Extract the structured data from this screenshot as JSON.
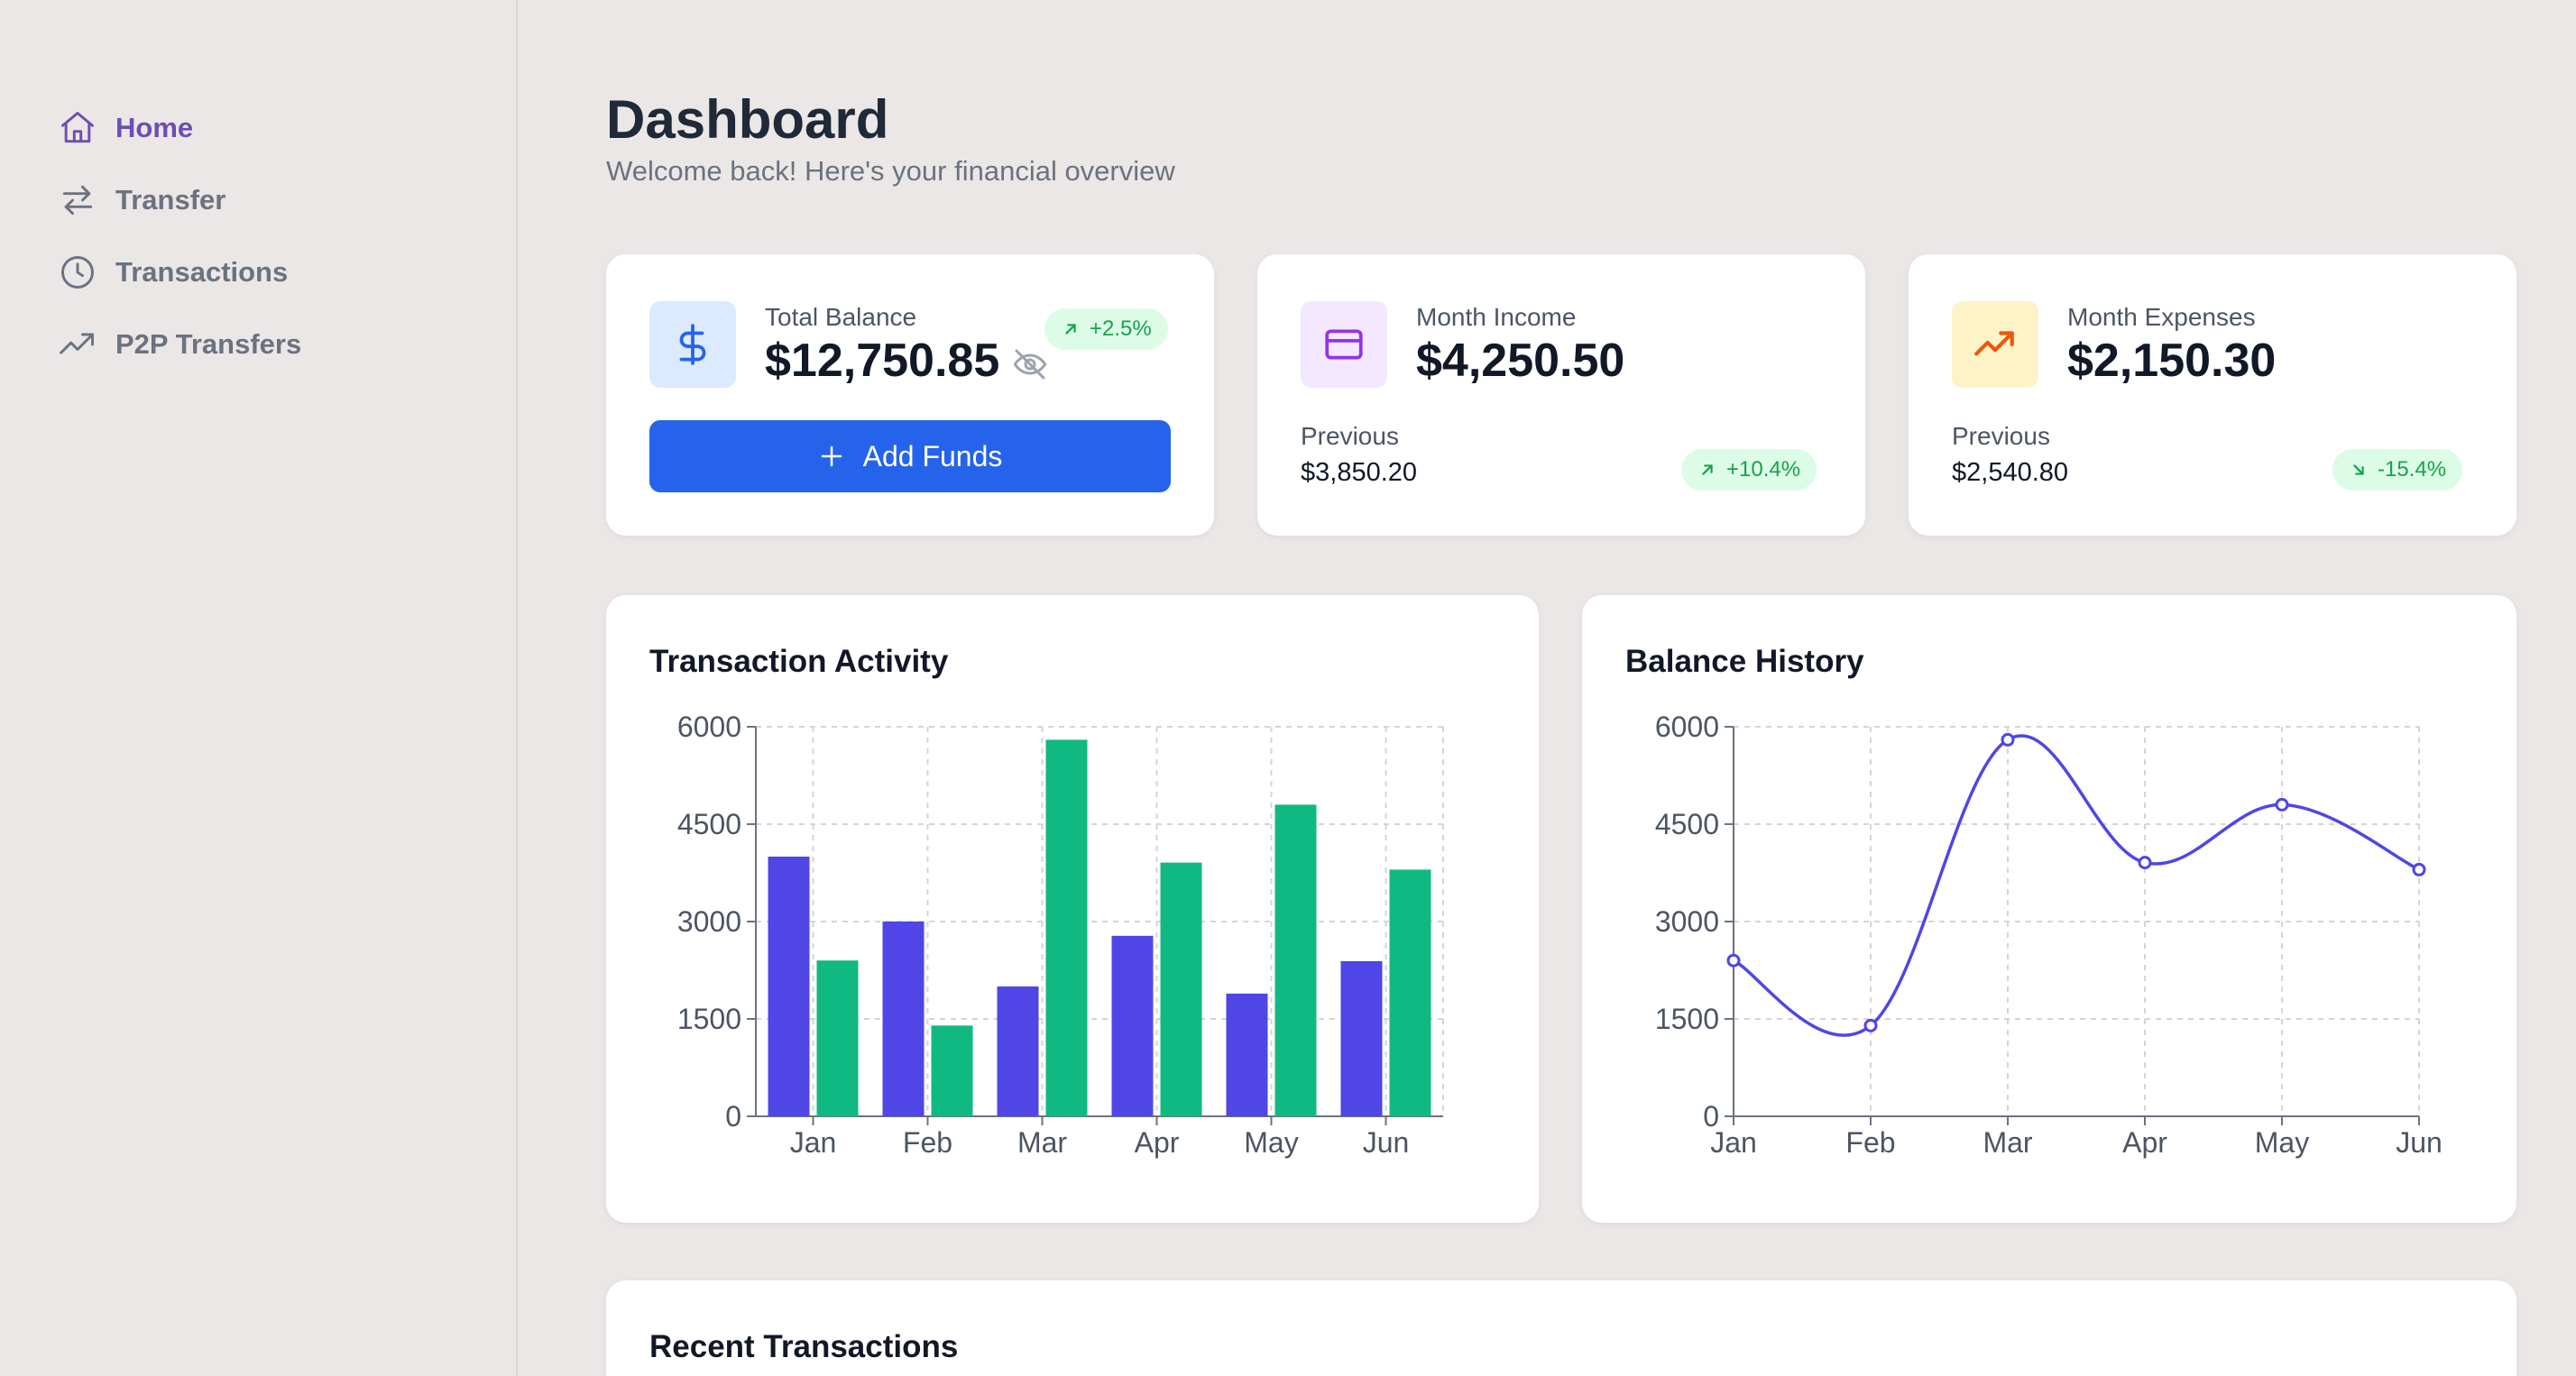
{
  "sidebar": {
    "items": [
      {
        "label": "Home",
        "icon": "home-icon",
        "active": true
      },
      {
        "label": "Transfer",
        "icon": "transfer-arrows-icon",
        "active": false
      },
      {
        "label": "Transactions",
        "icon": "clock-icon",
        "active": false
      },
      {
        "label": "P2P Transfers",
        "icon": "trending-up-icon",
        "active": false
      }
    ]
  },
  "header": {
    "title": "Dashboard",
    "subtitle": "Welcome back! Here's your financial overview"
  },
  "stats": {
    "balance": {
      "label": "Total Balance",
      "value": "$12,750.85",
      "change": "+2.5%",
      "button_label": "Add Funds",
      "icon": "dollar-icon"
    },
    "income": {
      "label": "Month Income",
      "value": "$4,250.50",
      "previous_label": "Previous",
      "previous_value": "$3,850.20",
      "change": "+10.4%",
      "icon": "credit-card-icon"
    },
    "expenses": {
      "label": "Month Expenses",
      "value": "$2,150.30",
      "previous_label": "Previous",
      "previous_value": "$2,540.80",
      "change": "-15.4%",
      "icon": "trending-up-icon"
    }
  },
  "colors": {
    "accent": "#2563eb",
    "active_nav": "#6b4fb3",
    "series_purple": "#4f46e5",
    "series_green": "#10b981",
    "badge_bg": "#dcfce7",
    "badge_text": "#16a34a"
  },
  "chart_data": [
    {
      "type": "bar",
      "title": "Transaction Activity",
      "categories": [
        "Jan",
        "Feb",
        "Mar",
        "Apr",
        "May",
        "Jun"
      ],
      "series": [
        {
          "values": [
            4000,
            3000,
            2000,
            2780,
            1890,
            2390
          ],
          "color": "#4f46e5"
        },
        {
          "values": [
            2400,
            1398,
            5800,
            3908,
            4800,
            3800
          ],
          "color": "#10b981"
        }
      ],
      "ylim": [
        0,
        6000
      ],
      "yticks": [
        0,
        1500,
        3000,
        4500,
        6000
      ],
      "grid": true
    },
    {
      "type": "line",
      "title": "Balance History",
      "categories": [
        "Jan",
        "Feb",
        "Mar",
        "Apr",
        "May",
        "Jun"
      ],
      "series": [
        {
          "values": [
            2400,
            1398,
            5800,
            3908,
            4800,
            3800
          ],
          "color": "#4f46e5"
        }
      ],
      "ylim": [
        0,
        6000
      ],
      "yticks": [
        0,
        1500,
        3000,
        4500,
        6000
      ],
      "grid": true
    }
  ],
  "recent": {
    "title": "Recent Transactions"
  }
}
